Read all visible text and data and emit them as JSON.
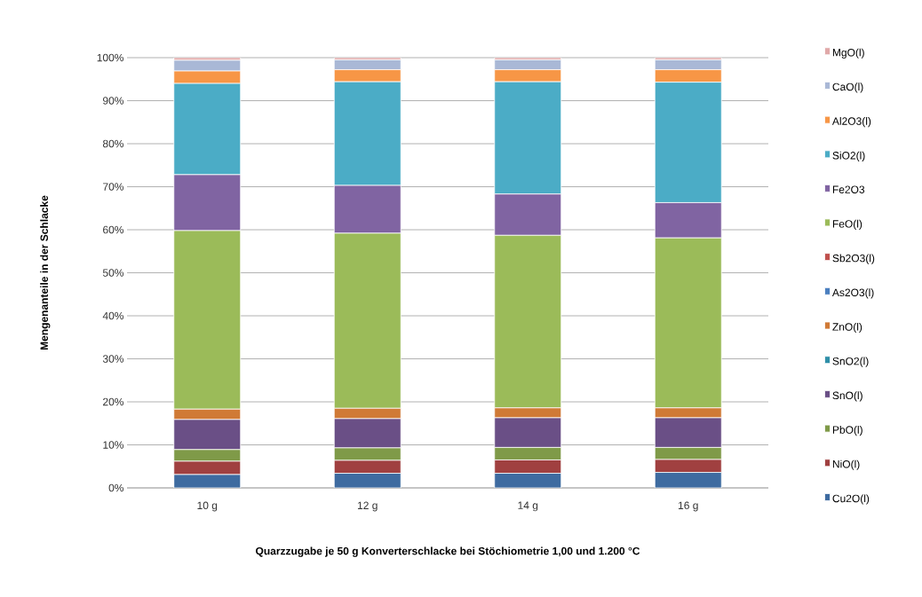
{
  "chart_data": {
    "type": "bar",
    "stacked": true,
    "xlabel": "Quarzzugabe je 50 g Konverterschlacke bei Stöchiometrie 1,00 und 1.200 °C",
    "ylabel": "Mengenanteile in der Schlacke",
    "categories": [
      "10 g",
      "12 g",
      "14 g",
      "16 g"
    ],
    "ylim": [
      0,
      100
    ],
    "yticks": [
      {
        "value": 0,
        "label": "0%"
      },
      {
        "value": 10,
        "label": "10%"
      },
      {
        "value": 20,
        "label": "20%"
      },
      {
        "value": 30,
        "label": "30%"
      },
      {
        "value": 40,
        "label": "40%"
      },
      {
        "value": 50,
        "label": "50%"
      },
      {
        "value": 60,
        "label": "60%"
      },
      {
        "value": 70,
        "label": "70%"
      },
      {
        "value": 80,
        "label": "80%"
      },
      {
        "value": 90,
        "label": "90%"
      },
      {
        "value": 100,
        "label": "100%"
      }
    ],
    "grid": "y",
    "legend": "right",
    "series": [
      {
        "name": "Cu2O(l)",
        "color": "#3e6ba0",
        "values": [
          3.1,
          3.4,
          3.4,
          3.6
        ]
      },
      {
        "name": "NiO(l)",
        "color": "#a04040",
        "values": [
          3.1,
          3.0,
          3.1,
          3.0
        ]
      },
      {
        "name": "PbO(l)",
        "color": "#7f9a48",
        "values": [
          2.7,
          2.9,
          2.9,
          2.8
        ]
      },
      {
        "name": "SnO(l)",
        "color": "#6a4f86",
        "values": [
          7.0,
          6.8,
          6.9,
          6.9
        ]
      },
      {
        "name": "SnO2(l)",
        "color": "#2f8fa8",
        "values": [
          0,
          0,
          0,
          0
        ]
      },
      {
        "name": "ZnO(l)",
        "color": "#d07a36",
        "values": [
          2.4,
          2.4,
          2.3,
          2.3
        ]
      },
      {
        "name": "As2O3(l)",
        "color": "#4a7fbf",
        "values": [
          0,
          0,
          0,
          0
        ]
      },
      {
        "name": "Sb2O3(l)",
        "color": "#c0504d",
        "values": [
          0,
          0,
          0,
          0
        ]
      },
      {
        "name": "FeO(l)",
        "color": "#9bbb59",
        "values": [
          41.5,
          40.7,
          40.1,
          39.5
        ]
      },
      {
        "name": "Fe2O3",
        "color": "#8064a2",
        "values": [
          13.0,
          11.1,
          9.6,
          8.2
        ]
      },
      {
        "name": "SiO2(l)",
        "color": "#4bacc6",
        "values": [
          21.2,
          24.1,
          26.1,
          28.0
        ]
      },
      {
        "name": "Al2O3(l)",
        "color": "#f79646",
        "values": [
          2.9,
          2.8,
          2.8,
          2.9
        ]
      },
      {
        "name": "CaO(l)",
        "color": "#a9b8d6",
        "values": [
          2.5,
          2.3,
          2.3,
          2.3
        ]
      },
      {
        "name": "MgO(l)",
        "color": "#e0a8a8",
        "values": [
          0.6,
          0.5,
          0.5,
          0.5
        ]
      }
    ]
  }
}
